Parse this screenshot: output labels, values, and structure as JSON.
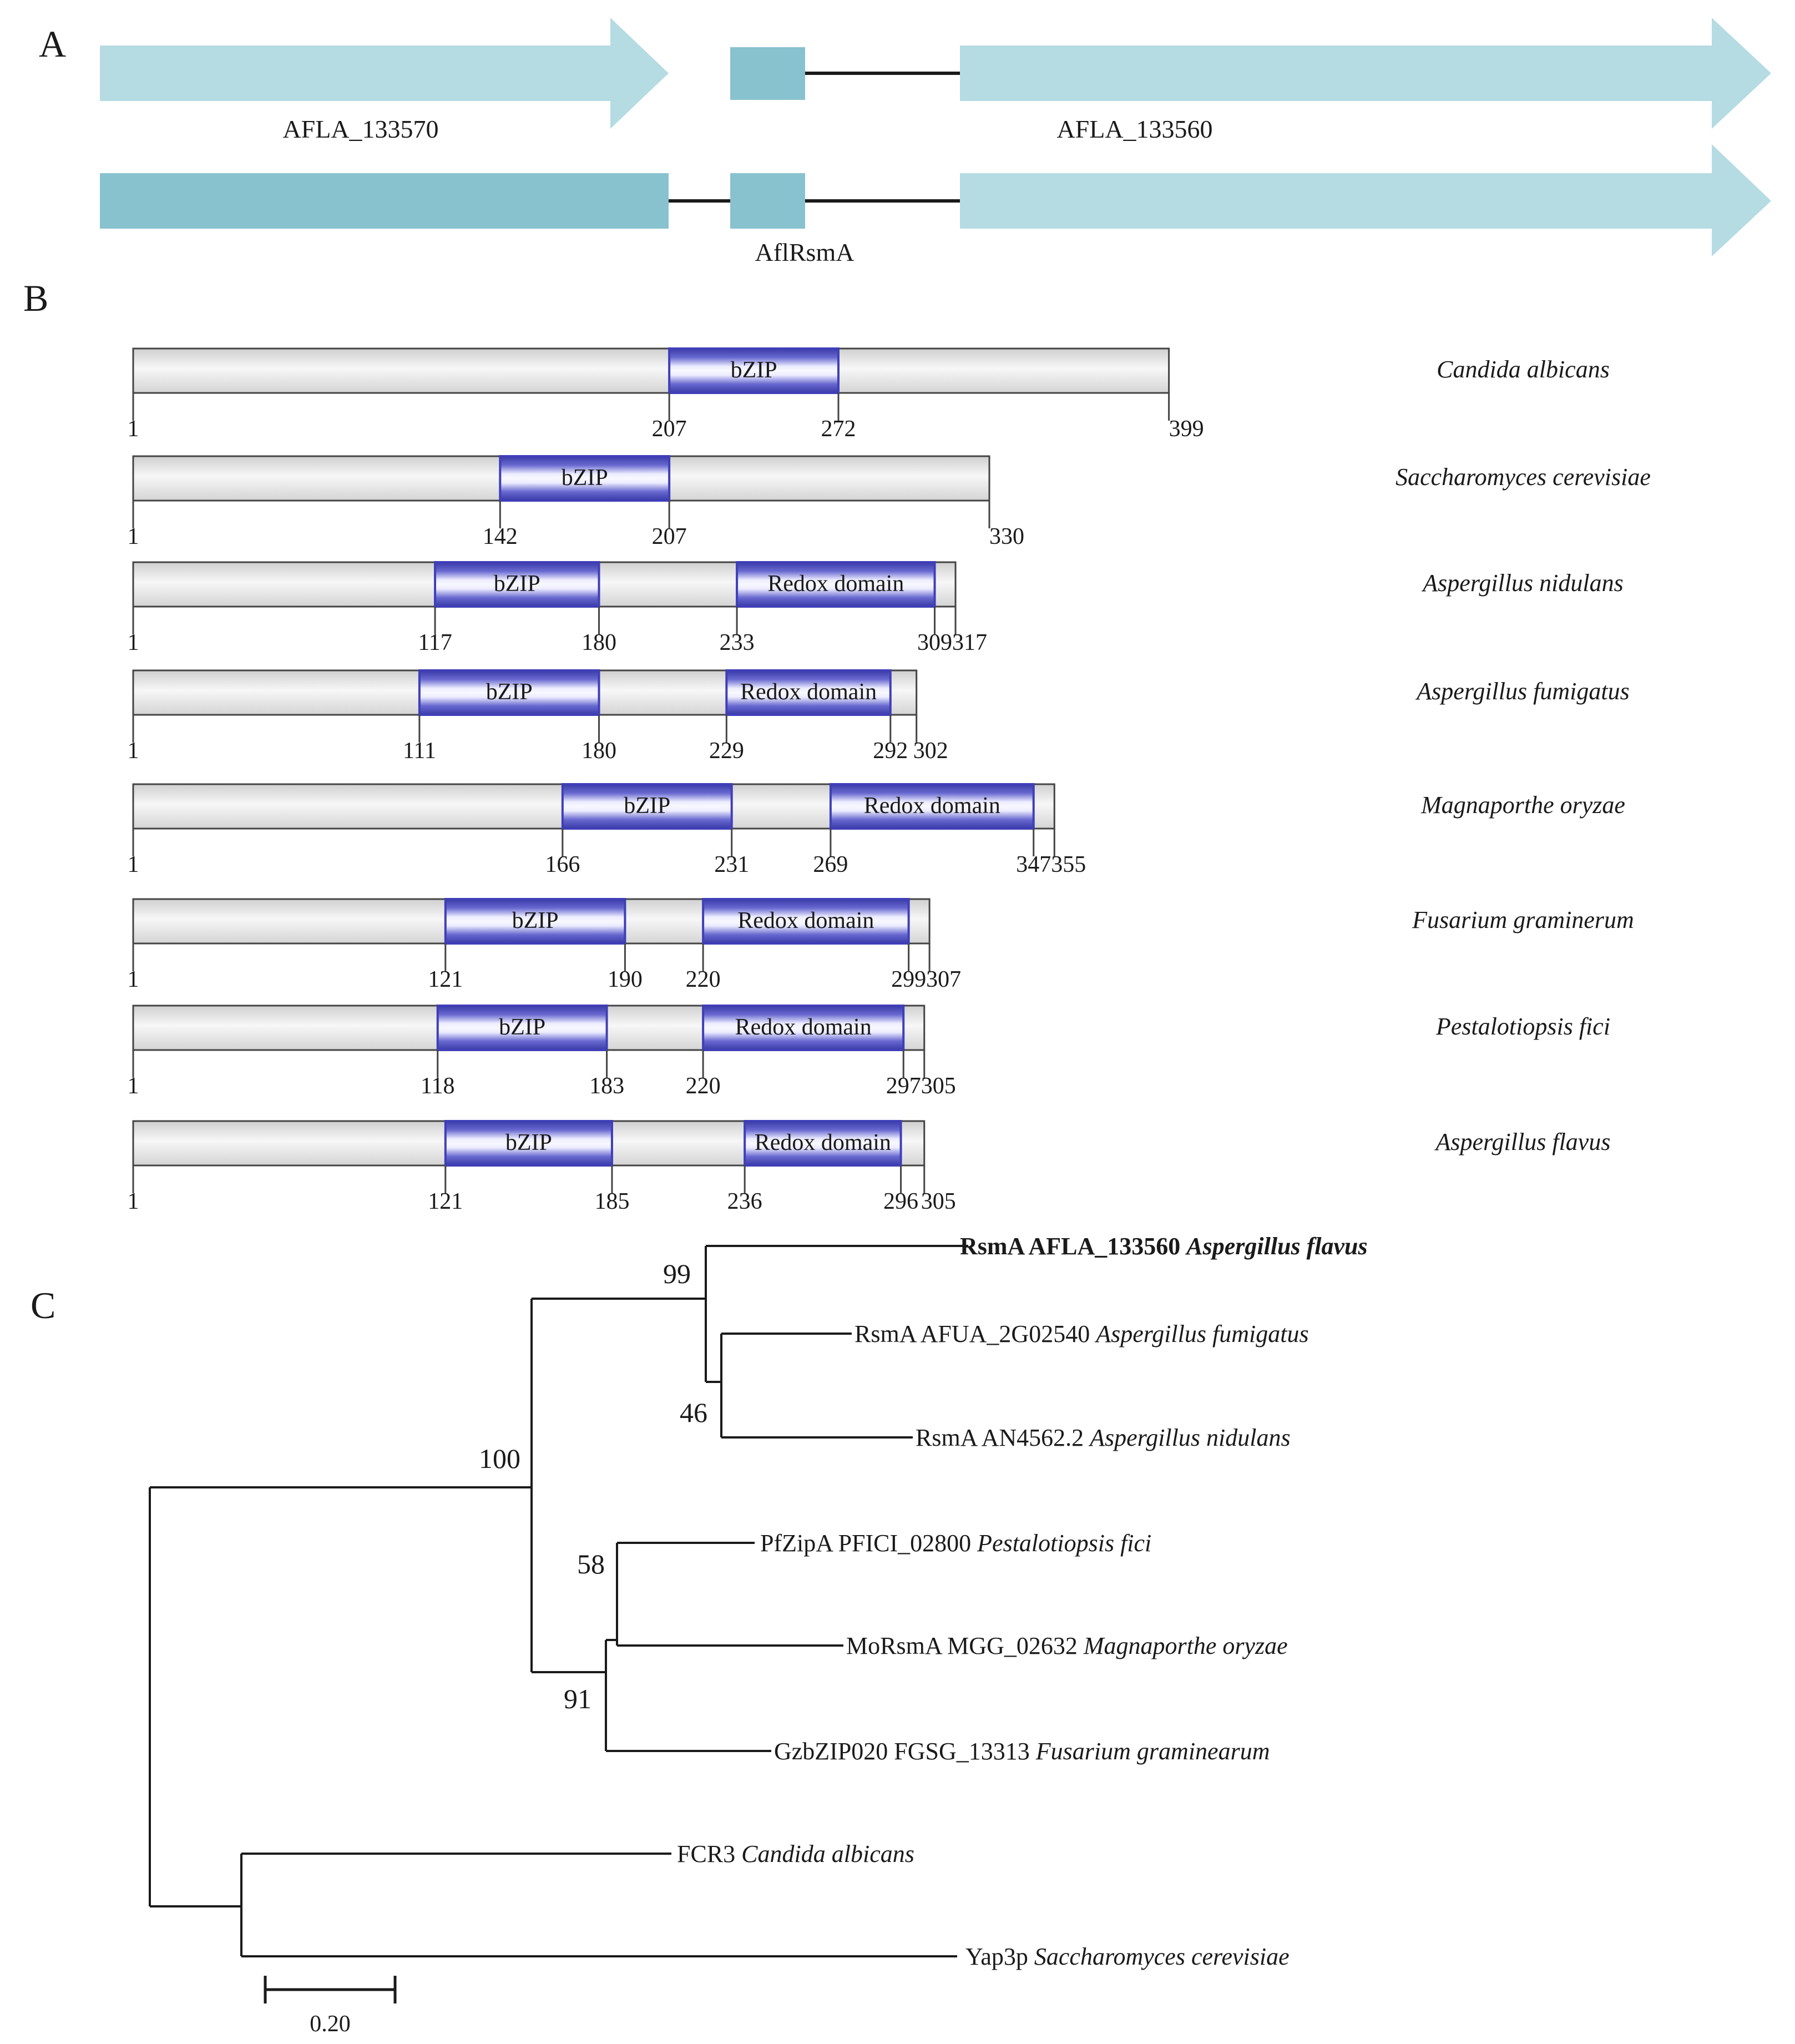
{
  "colors": {
    "arrow_light": "#b5dbe3",
    "arrow_mid": "#88c2cf",
    "domain_blue": "#3f3fb8",
    "protein_bar": "#e6e6e6",
    "line": "#1a1a1a"
  },
  "panelA": {
    "label": "A",
    "gene_left": "AFLA_133570",
    "gene_right": "AFLA_133560",
    "new_gene": "AflRsmA"
  },
  "panelB": {
    "label": "B",
    "proteins": [
      {
        "species": "Candida albicans",
        "length": 399,
        "domains": [
          {
            "name": "bZIP",
            "start": 207,
            "end": 272
          }
        ]
      },
      {
        "species": "Saccharomyces cerevisiae",
        "length": 330,
        "domains": [
          {
            "name": "bZIP",
            "start": 142,
            "end": 207
          }
        ]
      },
      {
        "species": "Aspergillus nidulans",
        "length": 317,
        "domains": [
          {
            "name": "bZIP",
            "start": 117,
            "end": 180
          },
          {
            "name": "Redox domain",
            "start": 233,
            "end": 309
          }
        ]
      },
      {
        "species": "Aspergillus fumigatus",
        "length": 302,
        "domains": [
          {
            "name": "bZIP",
            "start": 111,
            "end": 180
          },
          {
            "name": "Redox domain",
            "start": 229,
            "end": 292
          }
        ]
      },
      {
        "species": "Magnaporthe oryzae",
        "length": 355,
        "domains": [
          {
            "name": "bZIP",
            "start": 166,
            "end": 231
          },
          {
            "name": "Redox domain",
            "start": 269,
            "end": 347
          }
        ]
      },
      {
        "species": "Fusarium graminerum",
        "length": 307,
        "domains": [
          {
            "name": "bZIP",
            "start": 121,
            "end": 190
          },
          {
            "name": "Redox domain",
            "start": 220,
            "end": 299
          }
        ]
      },
      {
        "species": "Pestalotiopsis fici",
        "length": 305,
        "domains": [
          {
            "name": "bZIP",
            "start": 118,
            "end": 183
          },
          {
            "name": "Redox domain",
            "start": 220,
            "end": 297
          }
        ]
      },
      {
        "species": "Aspergillus flavus",
        "length": 305,
        "domains": [
          {
            "name": "bZIP",
            "start": 121,
            "end": 185
          },
          {
            "name": "Redox domain",
            "start": 236,
            "end": 296
          }
        ]
      }
    ]
  },
  "panelC": {
    "label": "C",
    "scale_label": "0.20",
    "bootstraps": {
      "root_ingroup": "100",
      "aspergillus": "99",
      "fum_nid": "46",
      "pf_mo": "58",
      "sordario": "91"
    },
    "taxa": [
      {
        "name": "RsmA AFLA_133560",
        "species": "Aspergillus flavus",
        "bold": true
      },
      {
        "name": "RsmA  AFUA_2G02540",
        "species": "Aspergillus fumigatus",
        "bold": false
      },
      {
        "name": "RsmA AN4562.2",
        "species": "Aspergillus nidulans",
        "bold": false
      },
      {
        "name": "PfZipA PFICI_02800",
        "species": "Pestalotiopsis fici",
        "bold": false
      },
      {
        "name": "MoRsmA MGG_02632",
        "species": "Magnaporthe oryzae",
        "bold": false
      },
      {
        "name": "GzbZIP020 FGSG_13313",
        "species": "Fusarium graminearum",
        "bold": false
      },
      {
        "name": "FCR3",
        "species": "Candida albicans",
        "bold": false
      },
      {
        "name": "Yap3p",
        "species": "Saccharomyces cerevisiae",
        "bold": false
      }
    ]
  }
}
